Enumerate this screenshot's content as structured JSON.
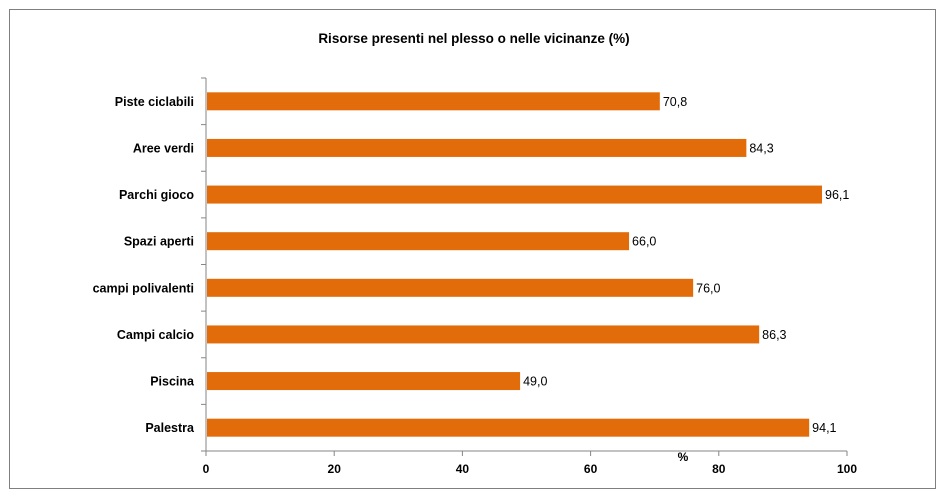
{
  "colors": {
    "bar": "#E36C0A",
    "axis": "#868686",
    "frame": "#7F7F7F"
  },
  "chart_data": {
    "type": "bar",
    "orientation": "horizontal",
    "title": "Risorse presenti nel plesso o nelle vicinanze (%)",
    "xlabel": "%",
    "ylabel": "",
    "xlim": [
      0,
      100
    ],
    "xticks": [
      0,
      20,
      40,
      60,
      80,
      100
    ],
    "grid": false,
    "legend": "none",
    "categories": [
      "Piste ciclabili",
      "Aree verdi",
      "Parchi gioco",
      "Spazi aperti",
      "campi polivalenti",
      "Campi calcio",
      "Piscina",
      "Palestra"
    ],
    "values": [
      70.8,
      84.3,
      96.1,
      66.0,
      76.0,
      86.3,
      49.0,
      94.1
    ],
    "value_labels": [
      "70,8",
      "84,3",
      "96,1",
      "66,0",
      "76,0",
      "86,3",
      "49,0",
      "94,1"
    ]
  }
}
